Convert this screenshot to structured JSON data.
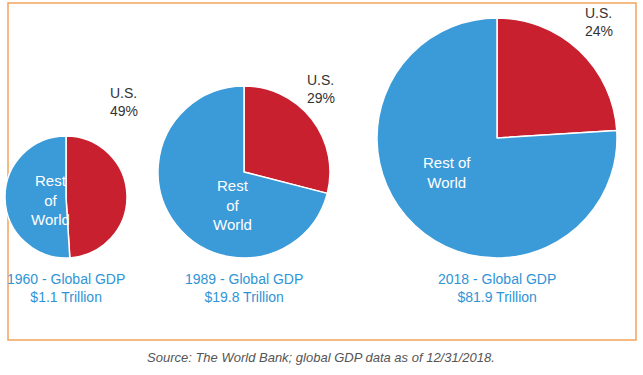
{
  "chart_data": [
    {
      "type": "pie",
      "title": [
        "1960 - Global GDP",
        "$1.1 Trillion"
      ],
      "categories": [
        "U.S.",
        "Rest of World"
      ],
      "values": [
        49,
        51
      ],
      "value_labels": [
        "49%",
        null
      ],
      "colors": [
        "#c8202f",
        "#3b9ad8"
      ],
      "data_labels": true
    },
    {
      "type": "pie",
      "title": [
        "1989 - Global GDP",
        "$19.8 Trillion"
      ],
      "categories": [
        "U.S.",
        "Rest of World"
      ],
      "values": [
        29,
        71
      ],
      "value_labels": [
        "29%",
        null
      ],
      "colors": [
        "#c8202f",
        "#3b9ad8"
      ],
      "data_labels": true
    },
    {
      "type": "pie",
      "title": [
        "2018 - Global GDP",
        "$81.9 Trillion"
      ],
      "categories": [
        "U.S.",
        "Rest of World"
      ],
      "values": [
        24,
        76
      ],
      "value_labels": [
        "24%",
        null
      ],
      "colors": [
        "#c8202f",
        "#3b9ad8"
      ],
      "data_labels": true
    }
  ],
  "source": "Source: The World Bank; global GDP data as of 12/31/2018."
}
